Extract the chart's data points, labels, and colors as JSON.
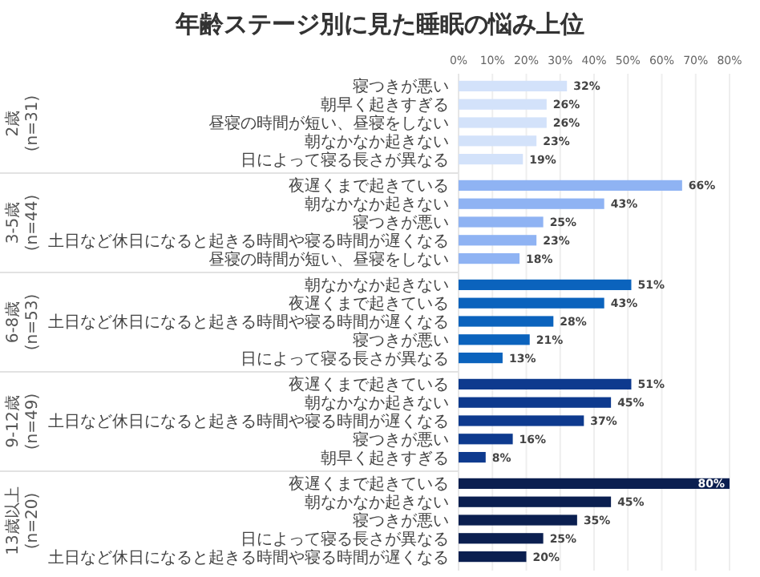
{
  "chart_data": [
    {
      "type": "bar",
      "orientation": "horizontal",
      "title": "年齢ステージ別に見た睡眠の悩み上位",
      "ylabel": "2歳\n(n=31)",
      "categories": [
        "寝つきが悪い",
        "朝早く起きすぎる",
        "昼寝の時間が短い、昼寝をしない",
        "朝なかなか起きない",
        "日によって寝る長さが異なる"
      ],
      "values": [
        32,
        26,
        26,
        23,
        19
      ],
      "value_labels": [
        "32%",
        "26%",
        "26%",
        "23%",
        "19%"
      ],
      "color": "#d3e2fa",
      "xlim": [
        0,
        80
      ],
      "xticks": [
        {
          "value": 0,
          "label": "0%"
        },
        {
          "value": 10,
          "label": "10%"
        },
        {
          "value": 20,
          "label": "20%"
        },
        {
          "value": 30,
          "label": "30%"
        },
        {
          "value": 40,
          "label": "40%"
        },
        {
          "value": 50,
          "label": "50%"
        },
        {
          "value": 60,
          "label": "60%"
        },
        {
          "value": 70,
          "label": "70%"
        },
        {
          "value": 80,
          "label": "80%"
        }
      ],
      "grid": "x"
    },
    {
      "type": "bar",
      "orientation": "horizontal",
      "ylabel": "3-5歳\n(n=44)",
      "categories": [
        "夜遅くまで起きている",
        "朝なかなか起きない",
        "寝つきが悪い",
        "土日など休日になると起きる時間や寝る時間が遅くなる",
        "昼寝の時間が短い、昼寝をしない"
      ],
      "values": [
        66,
        43,
        25,
        23,
        18
      ],
      "value_labels": [
        "66%",
        "43%",
        "25%",
        "23%",
        "18%"
      ],
      "color": "#8fb3f3",
      "xlim": [
        0,
        80
      ],
      "xticks": [
        0,
        10,
        20,
        30,
        40,
        50,
        60,
        70,
        80
      ],
      "tick_labels": "y",
      "grid": "x"
    },
    {
      "type": "bar",
      "orientation": "horizontal",
      "ylabel": "6-8歳\n(n=53)",
      "categories": [
        "朝なかなか起きない",
        "夜遅くまで起きている",
        "土日など休日になると起きる時間や寝る時間が遅くなる",
        "寝つきが悪い",
        "日によって寝る長さが異なる"
      ],
      "values": [
        51,
        43,
        28,
        21,
        13
      ],
      "value_labels": [
        "51%",
        "43%",
        "28%",
        "21%",
        "13%"
      ],
      "color": "#0b63bd",
      "xlim": [
        0,
        80
      ],
      "xticks": [
        0,
        10,
        20,
        30,
        40,
        50,
        60,
        70,
        80
      ],
      "tick_labels": "y",
      "grid": "x"
    },
    {
      "type": "bar",
      "orientation": "horizontal",
      "ylabel": "9-12歳\n(n=49)",
      "categories": [
        "夜遅くまで起きている",
        "朝なかなか起きない",
        "土日など休日になると起きる時間や寝る時間が遅くなる",
        "寝つきが悪い",
        "朝早く起きすぎる"
      ],
      "values": [
        51,
        45,
        37,
        16,
        8
      ],
      "value_labels": [
        "51%",
        "45%",
        "37%",
        "16%",
        "8%"
      ],
      "color": "#0e3a8e",
      "xlim": [
        0,
        80
      ],
      "xticks": [
        0,
        10,
        20,
        30,
        40,
        50,
        60,
        70,
        80
      ],
      "tick_labels": "y",
      "grid": "x"
    },
    {
      "type": "bar",
      "orientation": "horizontal",
      "ylabel": "13歳以上\n(n=20)",
      "categories": [
        "夜遅くまで起きている",
        "朝なかなか起きない",
        "寝つきが悪い",
        "日によって寝る長さが異なる",
        "土日など休日になると起きる時間や寝る時間が遅くなる"
      ],
      "values": [
        80,
        45,
        35,
        25,
        20
      ],
      "value_labels": [
        "80%",
        "45%",
        "35%",
        "25%",
        "20%"
      ],
      "color": "#0b1f50",
      "xlim": [
        0,
        80
      ],
      "xticks": [
        0,
        10,
        20,
        30,
        40,
        50,
        60,
        70,
        80
      ],
      "tick_labels": "y",
      "grid": "x"
    }
  ]
}
